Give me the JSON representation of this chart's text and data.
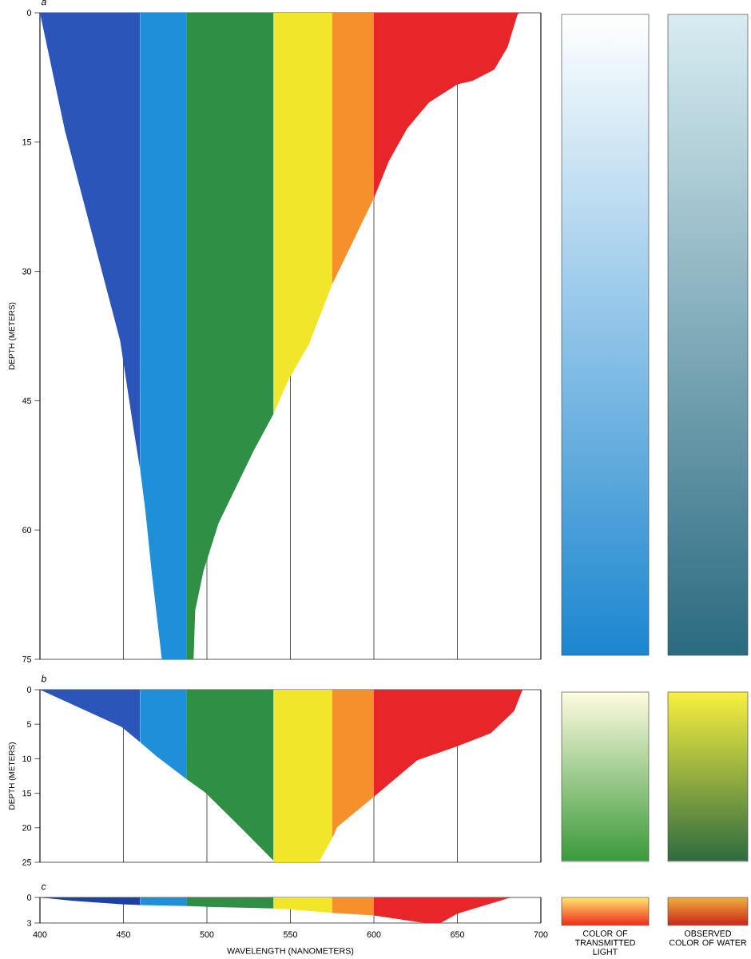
{
  "chart_data": [
    {
      "type": "area",
      "title": "a",
      "ylabel": "DEPTH (METERS)",
      "xlim": [
        400,
        700
      ],
      "xticks": [
        400,
        450,
        500,
        550,
        600,
        650,
        700
      ],
      "ylim": [
        75,
        0
      ],
      "yticks": [
        0,
        15,
        30,
        45,
        60,
        75
      ],
      "grid": "x",
      "tick_labels": "y",
      "series": [
        {
          "color": "#2b55b8",
          "x": [
            400,
            415,
            431,
            448,
            456,
            460
          ],
          "values": [
            0,
            13.7,
            25.5,
            38,
            48.2,
            53
          ]
        },
        {
          "color": "#1e8fd8",
          "x": [
            460,
            463,
            467,
            473,
            488
          ],
          "values": [
            53,
            57.5,
            65,
            75,
            75
          ]
        },
        {
          "color": "#2f8f45",
          "x": [
            488,
            492,
            493,
            498,
            507,
            528,
            540
          ],
          "values": [
            75,
            75,
            69.3,
            64.7,
            59.2,
            50.8,
            46.5
          ]
        },
        {
          "color": "#f2e62a",
          "x": [
            540,
            549,
            561,
            575
          ],
          "values": [
            46.5,
            42.5,
            38.5,
            31.5
          ]
        },
        {
          "color": "#f5902a",
          "x": [
            575,
            585,
            600
          ],
          "values": [
            31.5,
            27.5,
            21.5
          ]
        },
        {
          "color": "#e8262a",
          "x": [
            600,
            609,
            620,
            633,
            650,
            659,
            672,
            680,
            686,
            687
          ],
          "values": [
            21.5,
            17.2,
            13.4,
            10.4,
            8.3,
            7.9,
            6.6,
            4,
            0.2,
            0
          ]
        }
      ]
    },
    {
      "type": "area",
      "title": "b",
      "ylabel": "DEPTH (METERS)",
      "xlim": [
        400,
        700
      ],
      "xticks": [
        400,
        450,
        500,
        550,
        600,
        650,
        700
      ],
      "ylim": [
        25,
        0
      ],
      "yticks": [
        0,
        5,
        10,
        15,
        20,
        25
      ],
      "grid": "x",
      "tick_labels": "y",
      "series": [
        {
          "color": "#2b55b8",
          "x": [
            400,
            449,
            460
          ],
          "values": [
            0,
            5.4,
            7.6
          ]
        },
        {
          "color": "#1e8fd8",
          "x": [
            460,
            469,
            488
          ],
          "values": [
            7.6,
            9.5,
            13
          ]
        },
        {
          "color": "#2f8f45",
          "x": [
            488,
            499,
            520,
            540
          ],
          "values": [
            13,
            14.9,
            19.9,
            24.8
          ]
        },
        {
          "color": "#f2e62a",
          "x": [
            540,
            541,
            567,
            575
          ],
          "values": [
            24.8,
            25,
            25,
            21.5
          ]
        },
        {
          "color": "#f5902a",
          "x": [
            575,
            578,
            600
          ],
          "values": [
            21.5,
            19.9,
            15.5
          ]
        },
        {
          "color": "#e8262a",
          "x": [
            600,
            626,
            650,
            670,
            684,
            689
          ],
          "values": [
            15.5,
            10.2,
            8.2,
            6.3,
            3.1,
            0
          ]
        }
      ]
    },
    {
      "type": "area",
      "title": "c",
      "xlabel": "WAVELENGTH (NANOMETERS)",
      "xlim": [
        400,
        700
      ],
      "xticks": [
        400,
        450,
        500,
        550,
        600,
        650,
        700
      ],
      "ylim": [
        3,
        0
      ],
      "yticks": [
        0,
        3
      ],
      "grid": "x",
      "annotations": [
        "COLOR OF TRANSMITTED LIGHT",
        "OBSERVED COLOR OF WATER"
      ],
      "series": [
        {
          "color": "#1f3fa8",
          "x": [
            400,
            420,
            449,
            460
          ],
          "values": [
            0,
            0.4,
            0.8,
            0.9
          ]
        },
        {
          "color": "#1e8fd8",
          "x": [
            460,
            488
          ],
          "values": [
            0.9,
            1.0
          ]
        },
        {
          "color": "#2f8f45",
          "x": [
            488,
            500,
            540
          ],
          "values": [
            1.0,
            1.1,
            1.3
          ]
        },
        {
          "color": "#f2e62a",
          "x": [
            540,
            550,
            575
          ],
          "values": [
            1.3,
            1.4,
            1.8
          ]
        },
        {
          "color": "#f5902a",
          "x": [
            575,
            600
          ],
          "values": [
            1.8,
            2.1
          ]
        },
        {
          "color": "#e8262a",
          "x": [
            600,
            620,
            630,
            640,
            650,
            665,
            682
          ],
          "values": [
            2.1,
            2.7,
            3,
            3,
            1.9,
            1.0,
            0
          ]
        }
      ]
    }
  ]
}
